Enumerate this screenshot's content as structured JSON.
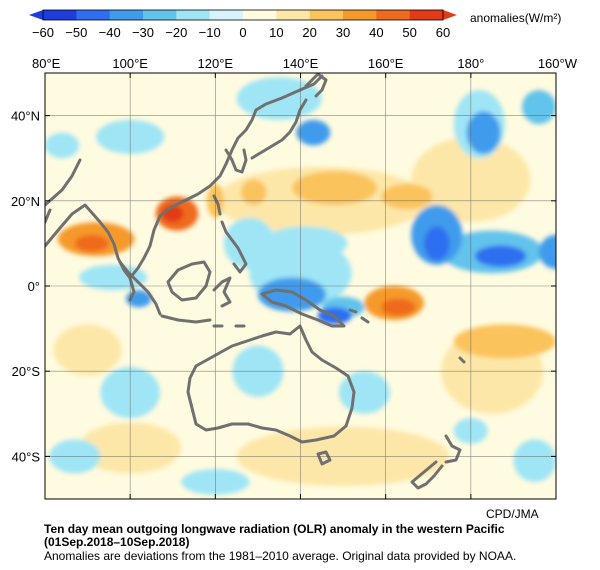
{
  "legend": {
    "ticks": [
      "−60",
      "−50",
      "−40",
      "−30",
      "−20",
      "−10",
      "0",
      "10",
      "20",
      "30",
      "40",
      "50",
      "60"
    ],
    "unit_label": "anomalies(W/m²)",
    "colors": [
      "#1e3ddc",
      "#2f6ef0",
      "#3f9bec",
      "#62c3ec",
      "#9fe5f5",
      "#d8f4fb",
      "#fffbe0",
      "#fde7a8",
      "#fbc35c",
      "#f59a2a",
      "#ef6a1c",
      "#e33a17"
    ]
  },
  "map": {
    "lon_labels": [
      "80°E",
      "100°E",
      "120°E",
      "140°E",
      "160°E",
      "180°",
      "160°W"
    ],
    "lat_labels": [
      "40°N",
      "20°N",
      "0°",
      "20°S",
      "40°S"
    ],
    "extent": {
      "lon_min": 80,
      "lon_max": 200,
      "lat_min": -50,
      "lat_max": 50
    },
    "land_color": "#707070",
    "background_color": "#fffbe0",
    "anomaly_patches": [
      {
        "lon": 92,
        "lat": 11,
        "rx": 9,
        "ry": 4,
        "value": 35
      },
      {
        "lon": 91,
        "lat": 10,
        "rx": 4,
        "ry": 2,
        "value": 45
      },
      {
        "lon": 111,
        "lat": 17,
        "rx": 5,
        "ry": 4,
        "value": 40
      },
      {
        "lon": 110,
        "lat": 17,
        "rx": 2.5,
        "ry": 2,
        "value": 50
      },
      {
        "lon": 120,
        "lat": 20,
        "rx": 2,
        "ry": 4,
        "value": 25
      },
      {
        "lon": 148,
        "lat": 23,
        "rx": 10,
        "ry": 4,
        "value": 25
      },
      {
        "lon": 165,
        "lat": 21,
        "rx": 6,
        "ry": 3,
        "value": 25
      },
      {
        "lon": 162,
        "lat": -4,
        "rx": 7,
        "ry": 4,
        "value": 30
      },
      {
        "lon": 163,
        "lat": -5,
        "rx": 4,
        "ry": 2,
        "value": 45
      },
      {
        "lon": 188,
        "lat": -13,
        "rx": 12,
        "ry": 4,
        "value": 25
      },
      {
        "lon": 145,
        "lat": 20,
        "rx": 25,
        "ry": 8,
        "value": 12
      },
      {
        "lon": 180,
        "lat": 25,
        "rx": 14,
        "ry": 10,
        "value": 12
      },
      {
        "lon": 185,
        "lat": -20,
        "rx": 12,
        "ry": 10,
        "value": 12
      },
      {
        "lon": 150,
        "lat": -40,
        "rx": 25,
        "ry": 7,
        "value": 12
      },
      {
        "lon": 100,
        "lat": -38,
        "rx": 12,
        "ry": 6,
        "value": 12
      },
      {
        "lon": 90,
        "lat": -15,
        "rx": 8,
        "ry": 6,
        "value": 12
      },
      {
        "lon": 129,
        "lat": 22,
        "rx": 3,
        "ry": 3,
        "value": 25
      },
      {
        "lon": 135,
        "lat": 44,
        "rx": 10,
        "ry": 5,
        "value": -15
      },
      {
        "lon": 143,
        "lat": 36,
        "rx": 4,
        "ry": 3,
        "value": -35
      },
      {
        "lon": 183,
        "lat": 36,
        "rx": 4,
        "ry": 5,
        "value": -35
      },
      {
        "lon": 182,
        "lat": 38,
        "rx": 6,
        "ry": 8,
        "value": -20
      },
      {
        "lon": 196,
        "lat": 42,
        "rx": 4,
        "ry": 4,
        "value": -25
      },
      {
        "lon": 172,
        "lat": 12,
        "rx": 6,
        "ry": 7,
        "value": -35
      },
      {
        "lon": 172,
        "lat": 10,
        "rx": 3,
        "ry": 4,
        "value": -45
      },
      {
        "lon": 187,
        "lat": 7,
        "rx": 6,
        "ry": 2.5,
        "value": -50
      },
      {
        "lon": 185,
        "lat": 8,
        "rx": 12,
        "ry": 5,
        "value": -25
      },
      {
        "lon": 200,
        "lat": 8,
        "rx": 4,
        "ry": 4,
        "value": -35
      },
      {
        "lon": 138,
        "lat": -2,
        "rx": 8,
        "ry": 4,
        "value": -40
      },
      {
        "lon": 140,
        "lat": 3,
        "rx": 12,
        "ry": 8,
        "value": -20
      },
      {
        "lon": 141,
        "lat": 10,
        "rx": 10,
        "ry": 4,
        "value": -15
      },
      {
        "lon": 128,
        "lat": 10,
        "rx": 6,
        "ry": 6,
        "value": -20
      },
      {
        "lon": 150,
        "lat": -5,
        "rx": 5,
        "ry": 2.5,
        "value": -30
      },
      {
        "lon": 148,
        "lat": -7,
        "rx": 4,
        "ry": 2,
        "value": -45
      },
      {
        "lon": 96,
        "lat": 2,
        "rx": 8,
        "ry": 3,
        "value": -20
      },
      {
        "lon": 102,
        "lat": -3,
        "rx": 3,
        "ry": 2,
        "value": -35
      },
      {
        "lon": 84,
        "lat": 33,
        "rx": 4,
        "ry": 3,
        "value": -20
      },
      {
        "lon": 100,
        "lat": 35,
        "rx": 8,
        "ry": 4,
        "value": -15
      },
      {
        "lon": 100,
        "lat": -25,
        "rx": 7,
        "ry": 6,
        "value": -15
      },
      {
        "lon": 130,
        "lat": -20,
        "rx": 6,
        "ry": 6,
        "value": -15
      },
      {
        "lon": 87,
        "lat": -40,
        "rx": 6,
        "ry": 4,
        "value": -15
      },
      {
        "lon": 120,
        "lat": -46,
        "rx": 8,
        "ry": 3,
        "value": -15
      },
      {
        "lon": 155,
        "lat": -25,
        "rx": 6,
        "ry": 5,
        "value": -15
      },
      {
        "lon": 195,
        "lat": -41,
        "rx": 5,
        "ry": 5,
        "value": -15
      },
      {
        "lon": 180,
        "lat": -34,
        "rx": 4,
        "ry": 3,
        "value": -15
      }
    ]
  },
  "credit": "CPD/JMA",
  "caption": {
    "title": "Ten day mean outgoing longwave radiation (OLR) anomaly in the western Pacific",
    "period": "(01Sep.2018–10Sep.2018)",
    "note": "Anomalies are deviations from the 1981–2010 average. Original data provided by NOAA."
  }
}
